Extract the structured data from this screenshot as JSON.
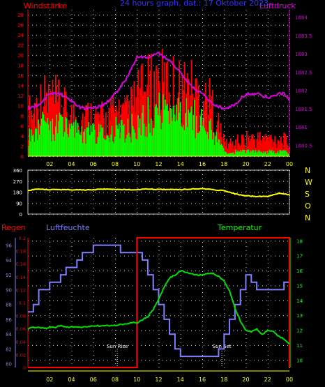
{
  "chart_data": [
    {
      "type": "bar",
      "title": "24 hours graph, dat.: 17 Oktober 2023",
      "left_label": "Windstärke",
      "right_label": "Luftdruck",
      "x_ticks": [
        "02",
        "04",
        "06",
        "08",
        "10",
        "12",
        "14",
        "16",
        "18",
        "20",
        "22",
        "00"
      ],
      "y_left_ticks": [
        "0",
        "2",
        "4",
        "6",
        "8",
        "10",
        "12",
        "14",
        "16",
        "18",
        "20",
        "22",
        "24",
        "26",
        "28"
      ],
      "y_right_ticks": [
        "1080.5",
        "1081",
        "1081.5",
        "1082",
        "1082.5",
        "1083",
        "1083.5",
        "1084"
      ],
      "ylim_left": [
        0,
        29
      ],
      "ylim_right": [
        1080.2,
        1084.2
      ],
      "grid": true,
      "series": [
        {
          "name": "Windstärke",
          "color": "#ff0000",
          "x": [
            0,
            1,
            2,
            3,
            4,
            5,
            6,
            7,
            8,
            9,
            10,
            11,
            12,
            13,
            14,
            15,
            16,
            17,
            18,
            19,
            20,
            21,
            22,
            23,
            24
          ],
          "values": [
            9,
            12,
            13,
            11,
            9,
            9,
            9,
            8,
            10,
            9,
            13,
            15,
            16,
            16,
            15,
            15,
            13,
            11,
            3,
            3,
            4,
            4,
            4,
            4,
            3
          ]
        },
        {
          "name": "Wind gust",
          "color": "#00ff00",
          "x": [
            0,
            1,
            2,
            3,
            4,
            5,
            6,
            7,
            8,
            9,
            10,
            11,
            12,
            13,
            14,
            15,
            16,
            17,
            18,
            19,
            20,
            21,
            22,
            23,
            24
          ],
          "values": [
            5,
            7,
            7,
            7,
            6,
            6,
            5,
            5,
            6,
            6,
            7,
            9,
            10,
            10,
            9,
            9,
            8,
            6,
            1,
            1,
            1,
            1,
            1,
            1,
            1
          ]
        },
        {
          "name": "Luftdruck",
          "color": "#dd00dd",
          "x": [
            0,
            1,
            2,
            3,
            4,
            5,
            6,
            7,
            8,
            9,
            10,
            11,
            12,
            13,
            14,
            15,
            16,
            17,
            18,
            19,
            20,
            21,
            22,
            23,
            23.5,
            24
          ],
          "values": [
            1081.5,
            1081.6,
            1081.9,
            1081.9,
            1081.7,
            1081.5,
            1081.5,
            1081.6,
            1081.9,
            1082.3,
            1082.9,
            1082.9,
            1083.0,
            1082.8,
            1082.5,
            1082.1,
            1081.9,
            1081.6,
            1081.5,
            1081.6,
            1081.9,
            1081.9,
            1081.8,
            1081.9,
            1081.9,
            1081.7
          ]
        }
      ]
    },
    {
      "type": "line",
      "right_label": [
        "N",
        "W",
        "S",
        "O",
        "N"
      ],
      "x_ticks": [
        "02",
        "04",
        "06",
        "08",
        "10",
        "12",
        "14",
        "16",
        "18",
        "20",
        "22",
        "00"
      ],
      "y_ticks": [
        "0",
        "90",
        "180",
        "270",
        "360"
      ],
      "ylim": [
        0,
        360
      ],
      "grid": true,
      "series": [
        {
          "name": "Wind direction",
          "color": "#ffff00",
          "x": [
            0,
            1,
            2,
            3,
            4,
            5,
            6,
            7,
            8,
            9,
            10,
            11,
            12,
            13,
            14,
            15,
            16,
            17,
            18,
            19,
            20,
            21,
            22,
            23,
            24
          ],
          "values": [
            195,
            205,
            200,
            200,
            200,
            198,
            200,
            205,
            202,
            200,
            200,
            205,
            202,
            202,
            200,
            205,
            210,
            200,
            192,
            165,
            150,
            145,
            145,
            170,
            158
          ]
        }
      ]
    },
    {
      "type": "line",
      "left_label_rain": "Regen",
      "left_label_humidity": "Luftfeuchte",
      "right_label": "Temperatur",
      "annotations": [
        "Sun Rise",
        "Sun Set"
      ],
      "x_ticks": [
        "02",
        "04",
        "06",
        "08",
        "10",
        "12",
        "14",
        "16",
        "18",
        "20",
        "22",
        "00"
      ],
      "y_humidity_ticks": [
        "80",
        "82",
        "84",
        "86",
        "88",
        "90",
        "92",
        "94",
        "96"
      ],
      "y_rain_ticks": [
        "0",
        "0.02",
        "0.04",
        "0.06",
        "0.08",
        "0.1",
        "0.12",
        "0.14",
        "0.16",
        "0.18",
        "0.2"
      ],
      "y_temp_ticks": [
        "10",
        "11",
        "12",
        "13",
        "14",
        "15",
        "16",
        "17",
        "18"
      ],
      "ylim_humidity": [
        79.5,
        97
      ],
      "ylim_rain": [
        0,
        0.2
      ],
      "ylim_temp": [
        9.5,
        18.2
      ],
      "grid": true,
      "series": [
        {
          "name": "Luftfeuchte",
          "color": "#7f7fff",
          "x": [
            0,
            0.5,
            1,
            1.5,
            2,
            2.5,
            3,
            3.5,
            4,
            4.5,
            5,
            5.5,
            6,
            6.5,
            7,
            7.5,
            8,
            8.5,
            9,
            9.5,
            10,
            10.5,
            11,
            11.5,
            12,
            12.5,
            13,
            13.5,
            14,
            14.5,
            15,
            15.5,
            16,
            16.5,
            17,
            17.5,
            18,
            18.5,
            19,
            19.5,
            20,
            20.5,
            21,
            21.5,
            22,
            22.5,
            23,
            23.5,
            24
          ],
          "values": [
            87,
            88,
            90,
            90,
            91,
            91,
            92,
            93,
            93,
            94,
            95,
            95,
            96,
            96,
            96,
            96,
            96,
            95,
            95,
            95,
            95,
            94,
            92,
            90,
            88,
            86,
            84,
            82,
            81,
            81,
            81,
            81,
            81,
            81,
            81,
            82,
            84,
            86,
            88,
            90,
            92,
            91,
            90,
            90,
            90,
            90,
            90,
            91,
            91
          ]
        },
        {
          "name": "Regen",
          "color": "#ff0000",
          "x": [
            0,
            10,
            10,
            24,
            24
          ],
          "values": [
            0,
            0,
            0.2,
            0.2,
            0
          ]
        },
        {
          "name": "Temperatur",
          "color": "#00dd00",
          "x": [
            0,
            0.5,
            1,
            1.5,
            2,
            2.5,
            3,
            3.5,
            4,
            4.5,
            5,
            5.5,
            6,
            6.5,
            7,
            7.5,
            8,
            8.5,
            9,
            9.5,
            10,
            10.5,
            11,
            11.5,
            12,
            12.5,
            13,
            13.5,
            14,
            14.5,
            15,
            15.5,
            16,
            16.5,
            17,
            17.5,
            18,
            18.5,
            19,
            19.5,
            20,
            20.5,
            21,
            21.5,
            22,
            22.5,
            23,
            23.5,
            24
          ],
          "values": [
            12.1,
            12.2,
            12.2,
            12.1,
            12.2,
            12.2,
            12.3,
            12.2,
            12.2,
            12.2,
            12.2,
            12.2,
            12.3,
            12.3,
            12.3,
            12.3,
            12.3,
            12.4,
            12.4,
            12.5,
            12.5,
            12.7,
            12.9,
            13.4,
            14.1,
            14.9,
            15.5,
            15.7,
            16.0,
            15.9,
            15.8,
            15.7,
            15.7,
            15.8,
            15.8,
            15.6,
            15.3,
            14.6,
            13.5,
            12.6,
            12.0,
            11.9,
            12.1,
            11.7,
            12.0,
            11.9,
            11.6,
            11.4,
            11.1
          ]
        }
      ]
    }
  ]
}
